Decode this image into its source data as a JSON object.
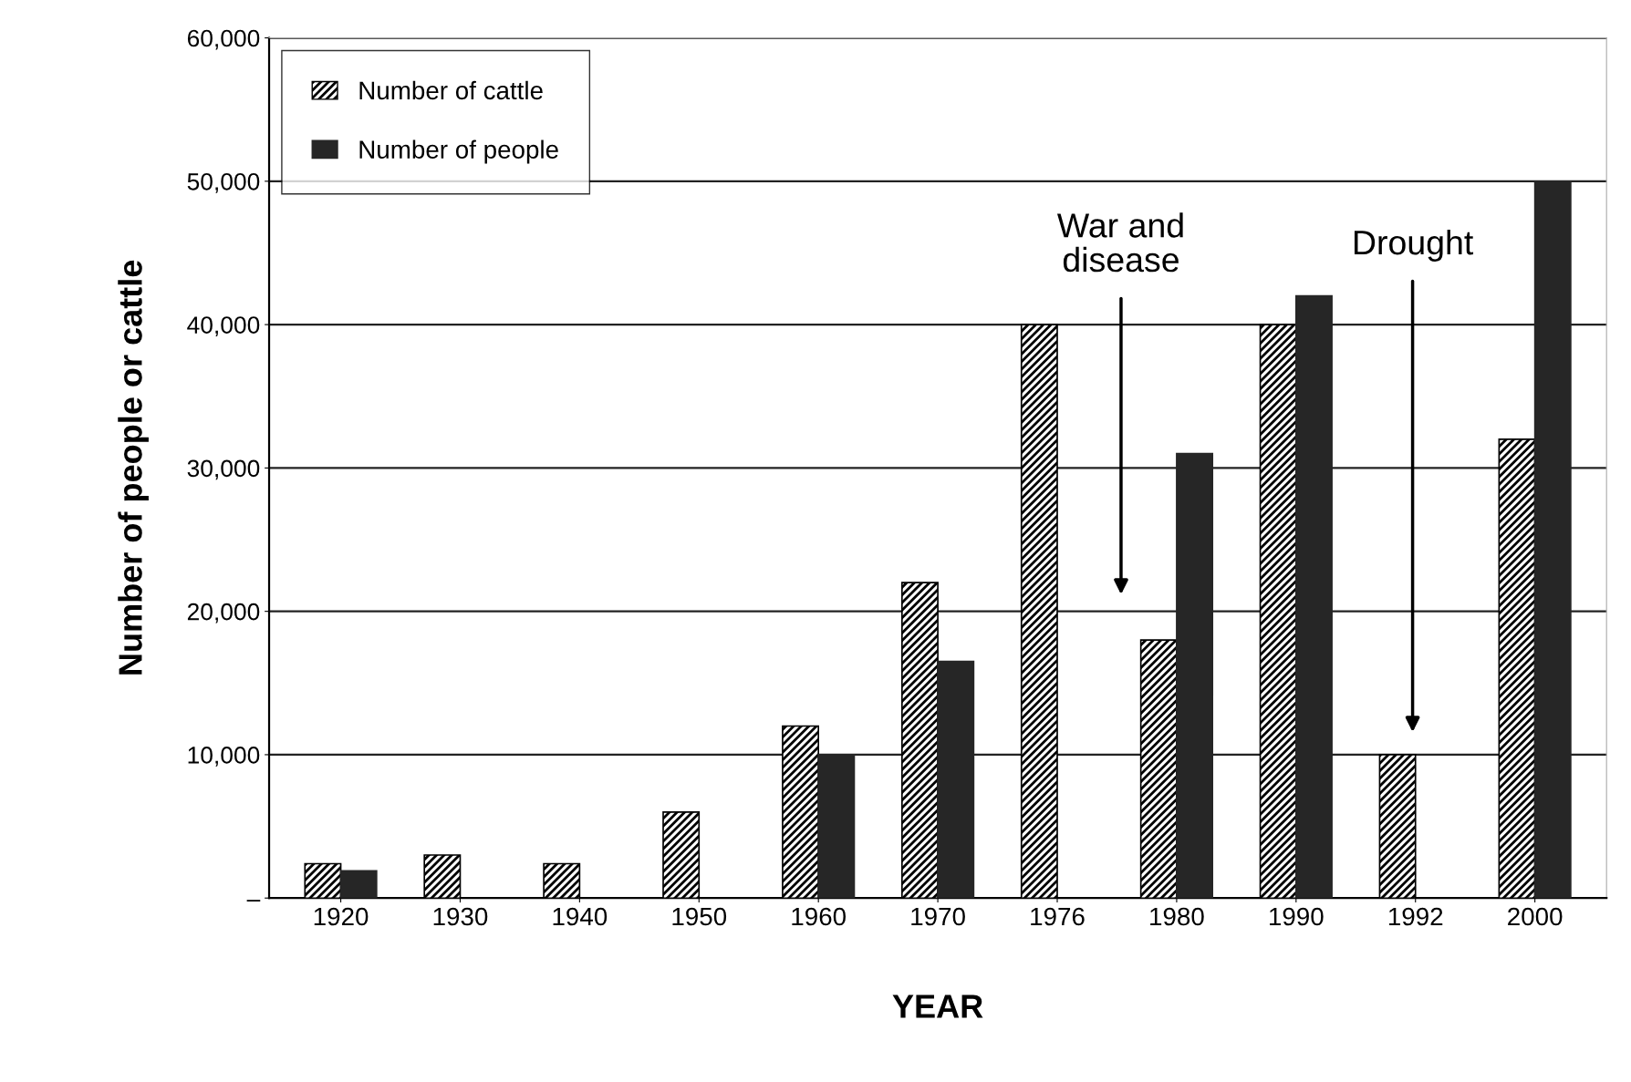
{
  "chart_data": {
    "type": "bar",
    "xlabel": "YEAR",
    "ylabel": "Number of people or cattle",
    "categories": [
      "1920",
      "1930",
      "1940",
      "1950",
      "1960",
      "1970",
      "1976",
      "1980",
      "1990",
      "1992",
      "2000"
    ],
    "series": [
      {
        "name": "Number of cattle",
        "color": "#000000",
        "values": [
          2400,
          3000,
          2400,
          6000,
          12000,
          22000,
          40000,
          18000,
          40000,
          10000,
          32000
        ]
      },
      {
        "name": "Number of people",
        "color": "#262626",
        "values": [
          1900,
          null,
          null,
          null,
          10000,
          16500,
          null,
          31000,
          42000,
          null,
          50000
        ]
      }
    ],
    "ylim": [
      0,
      60000
    ],
    "yticks": [
      {
        "value": 0,
        "label": "–"
      },
      {
        "value": 10000,
        "label": "10,000"
      },
      {
        "value": 20000,
        "label": "20,000"
      },
      {
        "value": 30000,
        "label": "30,000"
      },
      {
        "value": 40000,
        "label": "40,000"
      },
      {
        "value": 50000,
        "label": "50,000"
      },
      {
        "value": 60000,
        "label": "60,000"
      }
    ],
    "grid": "y",
    "legend": "top left",
    "annotations": [
      "War and\ndisease",
      "Drought"
    ]
  }
}
